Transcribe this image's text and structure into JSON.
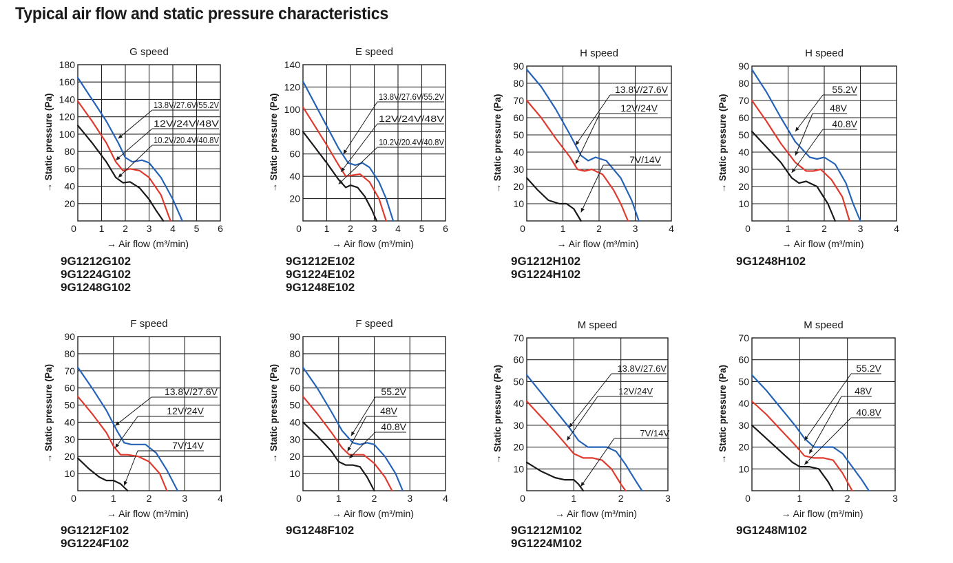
{
  "page": {
    "title": "Typical air flow and static pressure characteristics",
    "xlabel": "Air flow (m³/min)",
    "ylabel": "Static pressure (Pa)",
    "colors": {
      "high": "#2563b8",
      "mid": "#e03a2e",
      "low": "#1a1a1a",
      "grid": "#222222"
    }
  },
  "chart_data": [
    {
      "type": "line",
      "title": "G speed",
      "xlabel": "Air flow (m³/min)",
      "ylabel": "Static pressure (Pa)",
      "xlim": [
        0,
        6
      ],
      "ylim": [
        0,
        180
      ],
      "xticks": [
        0,
        1,
        2,
        3,
        4,
        5,
        6
      ],
      "yticks": [
        20,
        40,
        60,
        80,
        100,
        120,
        140,
        160,
        180
      ],
      "grid": true,
      "series": [
        {
          "name": "13.8V/27.6V/55.2V",
          "color": "#2563b8",
          "x": [
            0,
            0.6,
            1.2,
            1.7,
            2.0,
            2.3,
            2.7,
            3.0,
            3.5,
            4.0,
            4.4
          ],
          "y": [
            165,
            140,
            115,
            90,
            73,
            68,
            70,
            67,
            50,
            25,
            0
          ]
        },
        {
          "name": "12V/24V/48V",
          "color": "#e03a2e",
          "x": [
            0,
            0.6,
            1.2,
            1.6,
            1.9,
            2.2,
            2.6,
            3.0,
            3.5,
            3.9
          ],
          "y": [
            138,
            115,
            90,
            68,
            58,
            60,
            58,
            50,
            30,
            0
          ]
        },
        {
          "name": "10.2V/20.4V/40.8V",
          "color": "#1a1a1a",
          "x": [
            0,
            0.6,
            1.2,
            1.6,
            1.9,
            2.2,
            2.6,
            3.0,
            3.3,
            3.6
          ],
          "y": [
            110,
            90,
            68,
            50,
            44,
            45,
            38,
            25,
            12,
            0
          ]
        }
      ],
      "annotations": [
        "13.8V/27.6V/55.2V",
        "12V/24V/48V",
        "10.2V/20.4V/40.8V"
      ],
      "models": [
        "9G1212G102",
        "9G1224G102",
        "9G1248G102"
      ]
    },
    {
      "type": "line",
      "title": "E speed",
      "xlabel": "Air flow (m³/min)",
      "ylabel": "Static pressure (Pa)",
      "xlim": [
        0,
        6
      ],
      "ylim": [
        0,
        140
      ],
      "xticks": [
        0,
        1,
        2,
        3,
        4,
        5,
        6
      ],
      "yticks": [
        20,
        40,
        60,
        80,
        100,
        120,
        140
      ],
      "grid": true,
      "series": [
        {
          "name": "13.8V/27.6V/55.2V",
          "color": "#2563b8",
          "x": [
            0,
            0.5,
            1.0,
            1.5,
            1.9,
            2.2,
            2.5,
            2.8,
            3.2,
            3.5,
            3.8
          ],
          "y": [
            125,
            105,
            85,
            65,
            52,
            50,
            52,
            48,
            35,
            20,
            0
          ]
        },
        {
          "name": "12V/24V/48V",
          "color": "#e03a2e",
          "x": [
            0,
            0.5,
            1.0,
            1.5,
            1.8,
            2.1,
            2.4,
            2.8,
            3.2,
            3.5
          ],
          "y": [
            102,
            85,
            68,
            50,
            40,
            41,
            42,
            35,
            20,
            0
          ]
        },
        {
          "name": "10.2V/20.4V/40.8V",
          "color": "#1a1a1a",
          "x": [
            0,
            0.5,
            1.0,
            1.5,
            1.8,
            2.0,
            2.3,
            2.6,
            2.9,
            3.1
          ],
          "y": [
            80,
            66,
            52,
            37,
            30,
            32,
            30,
            22,
            10,
            0
          ]
        }
      ],
      "annotations": [
        "13.8V/27.6V/55.2V",
        "12V/24V/48V",
        "10.2V/20.4V/40.8V"
      ],
      "models": [
        "9G1212E102",
        "9G1224E102",
        "9G1248E102"
      ]
    },
    {
      "type": "line",
      "title": "H speed",
      "xlabel": "Air flow (m³/min)",
      "ylabel": "Static pressure (Pa)",
      "xlim": [
        0,
        4
      ],
      "ylim": [
        0,
        90
      ],
      "xticks": [
        0,
        1,
        2,
        3,
        4
      ],
      "yticks": [
        10,
        20,
        30,
        40,
        50,
        60,
        70,
        80,
        90
      ],
      "grid": true,
      "series": [
        {
          "name": "13.8V/27.6V",
          "color": "#2563b8",
          "x": [
            0,
            0.4,
            0.8,
            1.2,
            1.5,
            1.7,
            1.9,
            2.2,
            2.6,
            2.9,
            3.1
          ],
          "y": [
            88,
            78,
            65,
            50,
            38,
            35,
            37,
            35,
            25,
            12,
            0
          ]
        },
        {
          "name": "12V/24V",
          "color": "#e03a2e",
          "x": [
            0,
            0.4,
            0.8,
            1.2,
            1.4,
            1.6,
            1.8,
            2.1,
            2.4,
            2.6,
            2.8
          ],
          "y": [
            70,
            60,
            48,
            37,
            30,
            29,
            30,
            27,
            18,
            10,
            0
          ]
        },
        {
          "name": "7V/14V",
          "color": "#1a1a1a",
          "x": [
            0,
            0.3,
            0.6,
            0.9,
            1.1,
            1.3,
            1.5
          ],
          "y": [
            25,
            18,
            12,
            10,
            10,
            7,
            0
          ]
        }
      ],
      "annotations": [
        "13.8V/27.6V",
        "12V/24V",
        "7V/14V"
      ],
      "models": [
        "9G1212H102",
        "9G1224H102"
      ]
    },
    {
      "type": "line",
      "title": "H speed",
      "xlabel": "Air flow (m³/min)",
      "ylabel": "Static pressure (Pa)",
      "xlim": [
        0,
        4
      ],
      "ylim": [
        0,
        90
      ],
      "xticks": [
        0,
        1,
        2,
        3,
        4
      ],
      "yticks": [
        10,
        20,
        30,
        40,
        50,
        60,
        70,
        80,
        90
      ],
      "grid": true,
      "series": [
        {
          "name": "55.2V",
          "color": "#2563b8",
          "x": [
            0,
            0.4,
            0.8,
            1.2,
            1.6,
            1.8,
            2.0,
            2.3,
            2.6,
            2.8,
            3.0
          ],
          "y": [
            88,
            75,
            60,
            46,
            37,
            36,
            37,
            33,
            22,
            10,
            0
          ]
        },
        {
          "name": "48V",
          "color": "#e03a2e",
          "x": [
            0,
            0.4,
            0.8,
            1.2,
            1.5,
            1.7,
            1.9,
            2.2,
            2.5,
            2.7
          ],
          "y": [
            70,
            58,
            45,
            34,
            29,
            29,
            30,
            24,
            14,
            0
          ]
        },
        {
          "name": "40.8V",
          "color": "#1a1a1a",
          "x": [
            0,
            0.4,
            0.8,
            1.1,
            1.3,
            1.5,
            1.8,
            2.1,
            2.3
          ],
          "y": [
            52,
            43,
            34,
            25,
            22,
            23,
            20,
            10,
            0
          ]
        }
      ],
      "annotations": [
        "55.2V",
        "48V",
        "40.8V"
      ],
      "models": [
        "9G1248H102"
      ]
    },
    {
      "type": "line",
      "title": "F speed",
      "xlabel": "Air flow (m³/min)",
      "ylabel": "Static pressure (Pa)",
      "xlim": [
        0,
        4
      ],
      "ylim": [
        0,
        90
      ],
      "xticks": [
        0,
        1,
        2,
        3,
        4
      ],
      "yticks": [
        10,
        20,
        30,
        40,
        50,
        60,
        70,
        80,
        90
      ],
      "grid": true,
      "series": [
        {
          "name": "13.8V/27.6V",
          "color": "#2563b8",
          "x": [
            0,
            0.4,
            0.8,
            1.1,
            1.3,
            1.5,
            1.7,
            1.9,
            2.2,
            2.5,
            2.8
          ],
          "y": [
            72,
            60,
            47,
            35,
            28,
            27,
            27,
            27,
            22,
            12,
            0
          ]
        },
        {
          "name": "12V/24V",
          "color": "#e03a2e",
          "x": [
            0,
            0.4,
            0.8,
            1.0,
            1.2,
            1.4,
            1.7,
            2.0,
            2.3,
            2.5
          ],
          "y": [
            55,
            45,
            34,
            26,
            21,
            21,
            20,
            17,
            10,
            0
          ]
        },
        {
          "name": "7V/14V",
          "color": "#1a1a1a",
          "x": [
            0,
            0.3,
            0.6,
            0.8,
            1.0,
            1.2,
            1.4
          ],
          "y": [
            19,
            13,
            8,
            6,
            6,
            4,
            0
          ]
        }
      ],
      "annotations": [
        "13.8V/27.6V",
        "12V/24V",
        "7V/14V"
      ],
      "models": [
        "9G1212F102",
        "9G1224F102"
      ]
    },
    {
      "type": "line",
      "title": "F speed",
      "xlabel": "Air flow (m³/min)",
      "ylabel": "Static pressure (Pa)",
      "xlim": [
        0,
        4
      ],
      "ylim": [
        0,
        90
      ],
      "xticks": [
        0,
        1,
        2,
        3,
        4
      ],
      "yticks": [
        10,
        20,
        30,
        40,
        50,
        60,
        70,
        80,
        90
      ],
      "grid": true,
      "series": [
        {
          "name": "55.2V",
          "color": "#2563b8",
          "x": [
            0,
            0.4,
            0.8,
            1.1,
            1.4,
            1.6,
            1.8,
            2.0,
            2.3,
            2.6,
            2.8
          ],
          "y": [
            72,
            60,
            46,
            35,
            28,
            27,
            28,
            27,
            20,
            10,
            0
          ]
        },
        {
          "name": "48V",
          "color": "#e03a2e",
          "x": [
            0,
            0.4,
            0.8,
            1.1,
            1.3,
            1.5,
            1.7,
            2.0,
            2.3,
            2.5
          ],
          "y": [
            55,
            45,
            34,
            25,
            21,
            21,
            21,
            16,
            8,
            0
          ]
        },
        {
          "name": "40.8V",
          "color": "#1a1a1a",
          "x": [
            0,
            0.4,
            0.8,
            1.0,
            1.2,
            1.4,
            1.6,
            1.8,
            2.0
          ],
          "y": [
            40,
            32,
            23,
            17,
            15,
            15,
            14,
            8,
            0
          ]
        }
      ],
      "annotations": [
        "55.2V",
        "48V",
        "40.8V"
      ],
      "models": [
        "9G1248F102"
      ]
    },
    {
      "type": "line",
      "title": "M speed",
      "xlabel": "Air flow (m³/min)",
      "ylabel": "Static pressure (Pa)",
      "xlim": [
        0,
        3
      ],
      "ylim": [
        0,
        70
      ],
      "xticks": [
        0,
        1,
        2,
        3
      ],
      "yticks": [
        10,
        20,
        30,
        40,
        50,
        60,
        70
      ],
      "grid": true,
      "series": [
        {
          "name": "13.8V/27.6V",
          "color": "#2563b8",
          "x": [
            0,
            0.3,
            0.6,
            0.9,
            1.1,
            1.3,
            1.5,
            1.7,
            1.9,
            2.1,
            2.3,
            2.45
          ],
          "y": [
            53,
            45,
            37,
            29,
            23,
            20,
            20,
            20,
            18,
            12,
            5,
            0
          ]
        },
        {
          "name": "12V/24V",
          "color": "#e03a2e",
          "x": [
            0,
            0.3,
            0.6,
            0.8,
            1.0,
            1.2,
            1.4,
            1.6,
            1.8,
            2.0,
            2.1
          ],
          "y": [
            41,
            34,
            27,
            22,
            17,
            15,
            15,
            14,
            10,
            3,
            0
          ]
        },
        {
          "name": "7V/14V",
          "color": "#1a1a1a",
          "x": [
            0,
            0.3,
            0.6,
            0.8,
            1.0,
            1.1,
            1.2
          ],
          "y": [
            13,
            9,
            6,
            5,
            5,
            3,
            0
          ]
        }
      ],
      "annotations": [
        "13.8V/27.6V",
        "12V/24V",
        "7V/14V"
      ],
      "models": [
        "9G1212M102",
        "9G1224M102"
      ]
    },
    {
      "type": "line",
      "title": "M speed",
      "xlabel": "Air flow (m³/min)",
      "ylabel": "Static pressure (Pa)",
      "xlim": [
        0,
        3
      ],
      "ylim": [
        0,
        70
      ],
      "xticks": [
        0,
        1,
        2,
        3
      ],
      "yticks": [
        10,
        20,
        30,
        40,
        50,
        60,
        70
      ],
      "grid": true,
      "series": [
        {
          "name": "55.2V",
          "color": "#2563b8",
          "x": [
            0,
            0.3,
            0.6,
            0.9,
            1.1,
            1.3,
            1.5,
            1.7,
            1.9,
            2.1,
            2.3,
            2.45
          ],
          "y": [
            53,
            46,
            38,
            30,
            24,
            20,
            20,
            20,
            17,
            11,
            5,
            0
          ]
        },
        {
          "name": "48V",
          "color": "#e03a2e",
          "x": [
            0,
            0.3,
            0.6,
            0.9,
            1.1,
            1.3,
            1.5,
            1.7,
            1.9,
            2.1
          ],
          "y": [
            41,
            35,
            28,
            21,
            16,
            15,
            15,
            14,
            8,
            0
          ]
        },
        {
          "name": "40.8V",
          "color": "#1a1a1a",
          "x": [
            0,
            0.3,
            0.6,
            0.85,
            1.0,
            1.2,
            1.4,
            1.6,
            1.7
          ],
          "y": [
            30,
            24,
            18,
            13,
            11,
            11,
            10,
            4,
            0
          ]
        }
      ],
      "annotations": [
        "55.2V",
        "48V",
        "40.8V"
      ],
      "models": [
        "9G1248M102"
      ]
    }
  ]
}
